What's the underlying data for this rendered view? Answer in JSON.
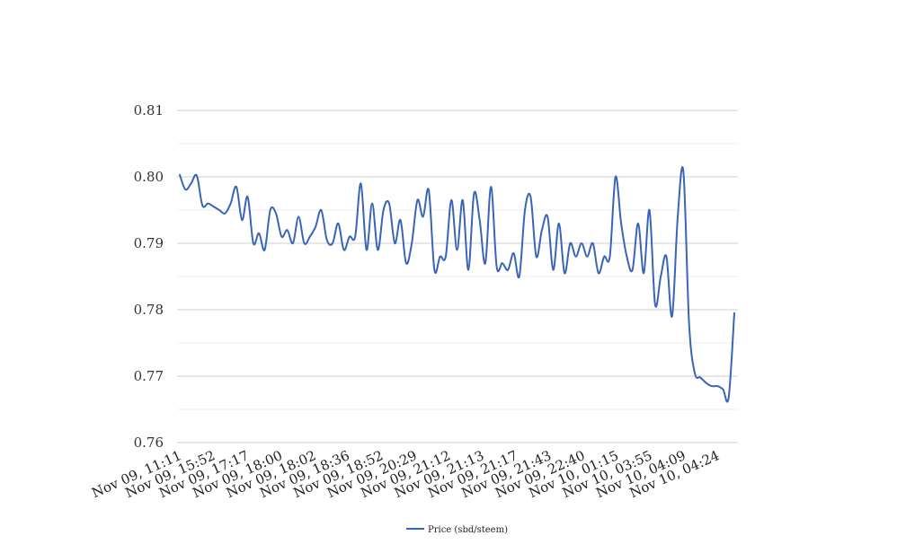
{
  "chart_data": {
    "type": "line",
    "ylim": [
      0.76,
      0.81
    ],
    "y_ticks": [
      "0.81",
      "0.80",
      "0.79",
      "0.78",
      "0.77",
      "0.76"
    ],
    "x_tick_labels": [
      "Nov 09, 11:11",
      "Nov 09, 15:52",
      "Nov 09, 17:17",
      "Nov 09, 18:00",
      "Nov 09, 18:02",
      "Nov 09, 18:36",
      "Nov 09, 18:52",
      "Nov 09, 20:29",
      "Nov 09, 21:12",
      "Nov 09, 21:13",
      "Nov 09, 21:17",
      "Nov 09, 21:43",
      "Nov 09, 22:40",
      "Nov 10, 01:15",
      "Nov 10, 03:55",
      "Nov 10, 04:09",
      "Nov 10, 04:24"
    ],
    "grid": true,
    "legend_position": "bottom",
    "series": [
      {
        "name": "Price (sbd/steem)",
        "color": "#3a64b8",
        "values": [
          0.8003,
          0.7981,
          0.799,
          0.8002,
          0.7957,
          0.796,
          0.7955,
          0.795,
          0.7945,
          0.796,
          0.7985,
          0.7935,
          0.797,
          0.79,
          0.7915,
          0.789,
          0.795,
          0.7945,
          0.791,
          0.792,
          0.79,
          0.794,
          0.79,
          0.791,
          0.7925,
          0.795,
          0.7905,
          0.79,
          0.793,
          0.789,
          0.791,
          0.791,
          0.799,
          0.789,
          0.796,
          0.789,
          0.795,
          0.796,
          0.79,
          0.7935,
          0.787,
          0.79,
          0.7965,
          0.794,
          0.798,
          0.786,
          0.788,
          0.788,
          0.7965,
          0.789,
          0.7965,
          0.786,
          0.7975,
          0.7935,
          0.787,
          0.7985,
          0.7865,
          0.787,
          0.786,
          0.7885,
          0.785,
          0.795,
          0.797,
          0.788,
          0.792,
          0.794,
          0.786,
          0.793,
          0.7855,
          0.79,
          0.788,
          0.79,
          0.788,
          0.79,
          0.7855,
          0.788,
          0.788,
          0.8,
          0.793,
          0.788,
          0.786,
          0.793,
          0.7855,
          0.795,
          0.7808,
          0.785,
          0.788,
          0.779,
          0.794,
          0.8008,
          0.778,
          0.7705,
          0.7698,
          0.769,
          0.7685,
          0.7685,
          0.768,
          0.7668,
          0.7795
        ]
      }
    ]
  }
}
